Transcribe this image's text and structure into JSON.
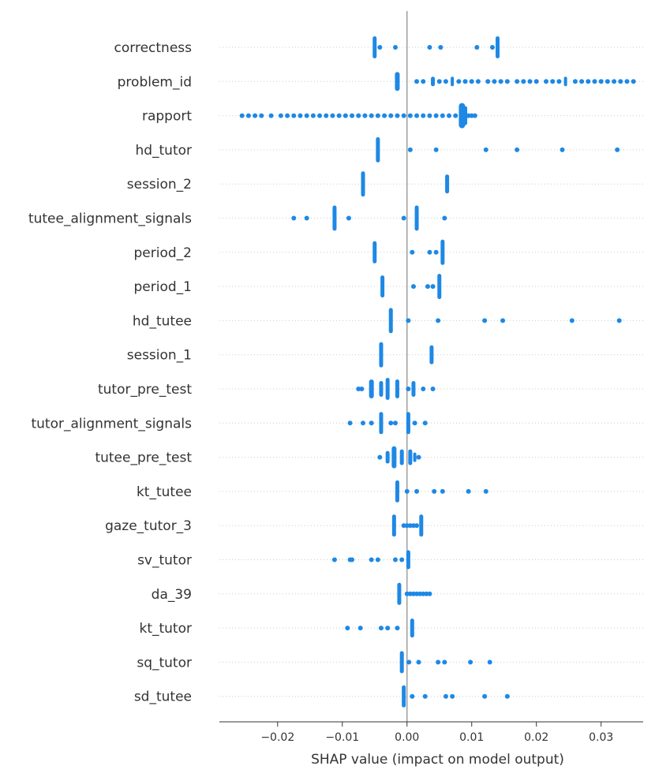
{
  "chart_data": {
    "type": "scatter",
    "subtype": "shap-beeswarm",
    "title": "",
    "xlabel": "SHAP value (impact on model output)",
    "ylabel": "",
    "xlim": [
      -0.029,
      0.0365
    ],
    "xticks": [
      -0.02,
      -0.01,
      0.0,
      0.01,
      0.02,
      0.03
    ],
    "xtick_labels": [
      "−0.02",
      "−0.01",
      "0.00",
      "0.01",
      "0.02",
      "0.03"
    ],
    "zero_line": 0.0,
    "grid": false,
    "point_color": "#1E88E5",
    "features": [
      {
        "name": "correctness",
        "clusters": [
          [
            -0.005,
            14,
            5
          ],
          [
            0.014,
            14,
            5
          ]
        ],
        "points": [
          -0.0042,
          -0.0018,
          0.0035,
          0.0052,
          0.0108,
          0.0132
        ]
      },
      {
        "name": "problem_id",
        "clusters": [
          [
            -0.0015,
            12,
            6
          ],
          [
            0.004,
            6,
            5
          ],
          [
            0.007,
            6,
            4
          ],
          [
            0.0245,
            6,
            4
          ]
        ],
        "points": [
          0.0015,
          0.0025,
          0.005,
          0.006,
          0.008,
          0.009,
          0.01,
          0.011,
          0.0125,
          0.0135,
          0.0145,
          0.0155,
          0.017,
          0.018,
          0.019,
          0.02,
          0.0215,
          0.0225,
          0.0235,
          0.026,
          0.027,
          0.028,
          0.029,
          0.03,
          0.031,
          0.032,
          0.033,
          0.034,
          0.035
        ]
      },
      {
        "name": "rapport",
        "clusters": [
          [
            0.0085,
            16,
            8
          ],
          [
            0.009,
            12,
            5
          ]
        ],
        "points": [
          -0.0255,
          -0.0245,
          -0.0235,
          -0.0225,
          -0.021,
          -0.0195,
          -0.0185,
          -0.0175,
          -0.0165,
          -0.0155,
          -0.0145,
          -0.0135,
          -0.0125,
          -0.0115,
          -0.0105,
          -0.0095,
          -0.0085,
          -0.0075,
          -0.0065,
          -0.0055,
          -0.0045,
          -0.0035,
          -0.0025,
          -0.0015,
          -0.0005,
          0.0005,
          0.0015,
          0.0025,
          0.0035,
          0.0045,
          0.0055,
          0.0065,
          0.0075,
          0.0095,
          0.01,
          0.0105
        ]
      },
      {
        "name": "hd_tutor",
        "clusters": [
          [
            -0.0045,
            16,
            5
          ]
        ],
        "points": [
          0.0005,
          0.0045,
          0.0122,
          0.017,
          0.024,
          0.0325
        ]
      },
      {
        "name": "session_2",
        "clusters": [
          [
            -0.0068,
            16,
            5
          ],
          [
            0.0062,
            12,
            5
          ]
        ],
        "points": []
      },
      {
        "name": "tutee_alignment_signals",
        "clusters": [
          [
            -0.0112,
            16,
            5
          ],
          [
            0.0015,
            16,
            5
          ]
        ],
        "points": [
          -0.0175,
          -0.0155,
          -0.009,
          -0.0005,
          0.0058
        ]
      },
      {
        "name": "period_2",
        "clusters": [
          [
            -0.005,
            14,
            5
          ],
          [
            0.0055,
            16,
            5
          ]
        ],
        "points": [
          0.0008,
          0.0035,
          0.0045
        ]
      },
      {
        "name": "period_1",
        "clusters": [
          [
            -0.0038,
            14,
            5
          ],
          [
            0.005,
            16,
            5
          ]
        ],
        "points": [
          0.001,
          0.0032,
          0.004
        ]
      },
      {
        "name": "hd_tutee",
        "clusters": [
          [
            -0.0025,
            16,
            5
          ]
        ],
        "points": [
          0.0002,
          0.0048,
          0.012,
          0.0148,
          0.0255,
          0.0328
        ]
      },
      {
        "name": "session_1",
        "clusters": [
          [
            -0.004,
            16,
            5
          ],
          [
            0.0038,
            12,
            5
          ]
        ],
        "points": []
      },
      {
        "name": "tutor_pre_test",
        "clusters": [
          [
            -0.0055,
            12,
            6
          ],
          [
            -0.004,
            10,
            5
          ],
          [
            -0.003,
            14,
            5
          ],
          [
            -0.0015,
            12,
            5
          ],
          [
            0.001,
            10,
            5
          ]
        ],
        "points": [
          -0.0075,
          -0.007,
          0.0002,
          0.0025,
          0.004
        ]
      },
      {
        "name": "tutor_alignment_signals",
        "clusters": [
          [
            -0.004,
            14,
            5
          ],
          [
            0.0002,
            14,
            5
          ]
        ],
        "points": [
          -0.0088,
          -0.0068,
          -0.0055,
          -0.0025,
          -0.0018,
          0.0012,
          0.0028
        ]
      },
      {
        "name": "tutee_pre_test",
        "clusters": [
          [
            -0.003,
            8,
            5
          ],
          [
            -0.002,
            14,
            6
          ],
          [
            -0.0008,
            10,
            5
          ],
          [
            0.0005,
            10,
            5
          ],
          [
            0.0012,
            6,
            4
          ]
        ],
        "points": [
          -0.0042,
          0.0018
        ]
      },
      {
        "name": "kt_tutee",
        "clusters": [
          [
            -0.0015,
            14,
            5
          ]
        ],
        "points": [
          0.0,
          0.0015,
          0.0042,
          0.0055,
          0.0095,
          0.0122
        ]
      },
      {
        "name": "gaze_tutor_3",
        "clusters": [
          [
            -0.002,
            14,
            5
          ],
          [
            0.0022,
            14,
            5
          ]
        ],
        "points": [
          -0.0005,
          0.0,
          0.0005,
          0.001,
          0.0015
        ]
      },
      {
        "name": "sv_tutor",
        "clusters": [
          [
            0.0002,
            12,
            5
          ]
        ],
        "points": [
          -0.0112,
          -0.0088,
          -0.0085,
          -0.0055,
          -0.0045,
          -0.0018,
          -0.0008
        ]
      },
      {
        "name": "da_39",
        "clusters": [
          [
            -0.0012,
            14,
            5
          ]
        ],
        "points": [
          0.0,
          0.0005,
          0.001,
          0.0015,
          0.002,
          0.0025,
          0.003,
          0.0035
        ]
      },
      {
        "name": "kt_tutor",
        "clusters": [
          [
            0.0008,
            12,
            5
          ]
        ],
        "points": [
          -0.0092,
          -0.0072,
          -0.004,
          -0.003,
          -0.0015
        ]
      },
      {
        "name": "sq_tutor",
        "clusters": [
          [
            -0.0008,
            14,
            5
          ]
        ],
        "points": [
          0.0003,
          0.0018,
          0.0048,
          0.0058,
          0.0098,
          0.0128
        ]
      },
      {
        "name": "sd_tutee",
        "clusters": [
          [
            -0.0005,
            14,
            5
          ]
        ],
        "points": [
          0.0008,
          0.0028,
          0.006,
          0.007,
          0.012,
          0.0155
        ]
      }
    ]
  }
}
